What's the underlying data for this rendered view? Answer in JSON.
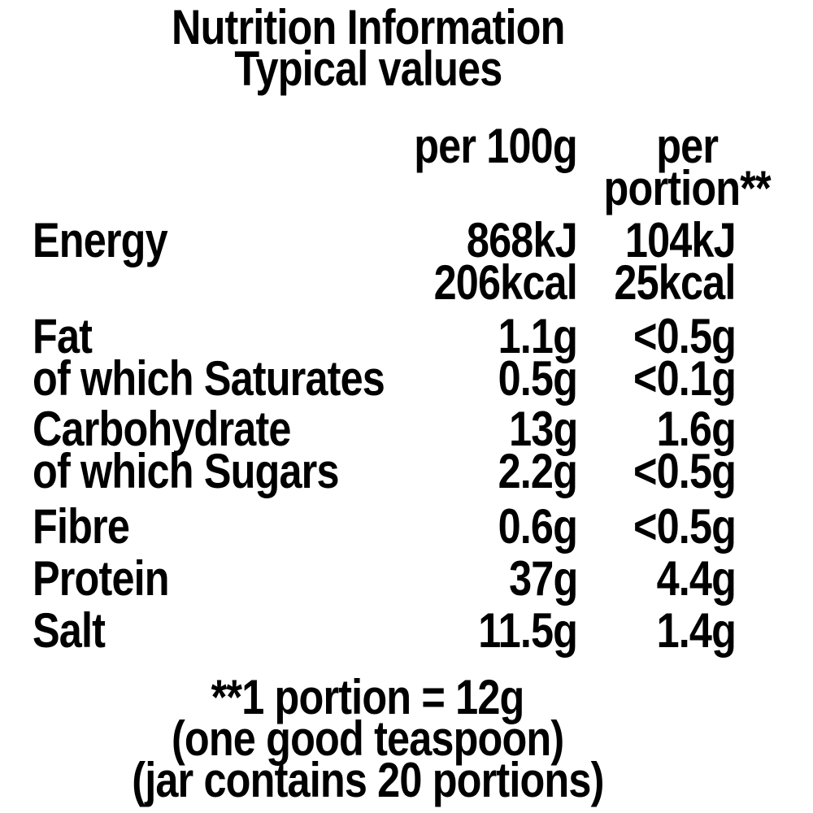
{
  "label": {
    "title_line1": "Nutrition Information",
    "title_line2": "Typical values",
    "columns": {
      "per_100g": "per 100g",
      "per_portion_line1": "per",
      "per_portion_line2": "portion**"
    },
    "rows": [
      {
        "name": "Energy",
        "per100g": "868kJ",
        "per100g_line2": "206kcal",
        "portion": "104kJ",
        "portion_line2": "25kcal"
      },
      {
        "name": "Fat",
        "per100g": "1.1g",
        "portion": "<0.5g"
      },
      {
        "name": "of which Saturates",
        "per100g": "0.5g",
        "portion": "<0.1g"
      },
      {
        "name": "Carbohydrate",
        "per100g": "13g",
        "portion": "1.6g"
      },
      {
        "name": "of which Sugars",
        "per100g": "2.2g",
        "portion": "<0.5g"
      },
      {
        "name": "Fibre",
        "per100g": "0.6g",
        "portion": "<0.5g"
      },
      {
        "name": "Protein",
        "per100g": "37g",
        "portion": "4.4g"
      },
      {
        "name": "Salt",
        "per100g": "11.5g",
        "portion": "1.4g"
      }
    ],
    "footnotes": [
      "**1 portion = 12g",
      "(one good teaspoon)",
      "(jar contains 20 portions)"
    ]
  },
  "colors": {
    "text": "#000000",
    "background": "#ffffff"
  }
}
